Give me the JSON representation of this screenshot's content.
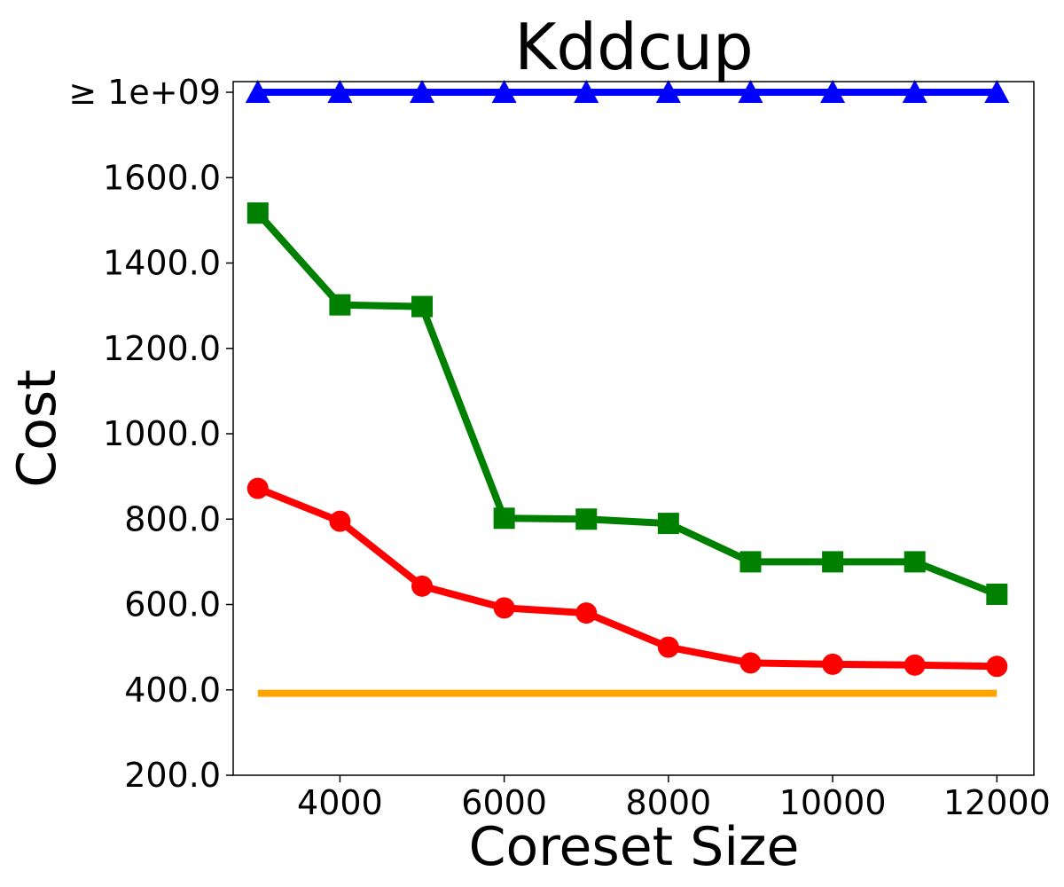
{
  "chart_data": {
    "type": "line",
    "title": "Kddcup",
    "xlabel": "Coreset Size",
    "ylabel": "Cost",
    "xlim": [
      2700,
      12450
    ],
    "ylim": [
      200,
      1825
    ],
    "x_ticks": [
      4000,
      6000,
      8000,
      10000,
      12000
    ],
    "x_tick_labels": [
      "4000",
      "6000",
      "8000",
      "10000",
      "12000"
    ],
    "y_ticks": [
      200,
      400,
      600,
      800,
      1000,
      1200,
      1400,
      1600,
      1800
    ],
    "y_tick_labels": [
      "200.0",
      "400.0",
      "600.0",
      "800.0",
      "1000.0",
      "1200.0",
      "1400.0",
      "1600.0",
      "≥ 1e+09"
    ],
    "grid": false,
    "x": [
      3000,
      4000,
      5000,
      6000,
      7000,
      8000,
      9000,
      10000,
      11000,
      12000
    ],
    "series": [
      {
        "color": "#0000ff",
        "marker": "triangle",
        "values": [
          1800,
          1800,
          1800,
          1800,
          1800,
          1800,
          1800,
          1800,
          1800,
          1800
        ]
      },
      {
        "color": "#008000",
        "marker": "square",
        "values": [
          1517,
          1302,
          1298,
          802,
          800,
          790,
          700,
          700,
          700,
          624
        ]
      },
      {
        "color": "#ff0000",
        "marker": "circle",
        "values": [
          872,
          795,
          643,
          592,
          580,
          500,
          463,
          460,
          458,
          455
        ]
      },
      {
        "color": "#ffa500",
        "marker": "none",
        "values": [
          392,
          392,
          392,
          392,
          392,
          392,
          392,
          392,
          392,
          392
        ]
      }
    ]
  }
}
